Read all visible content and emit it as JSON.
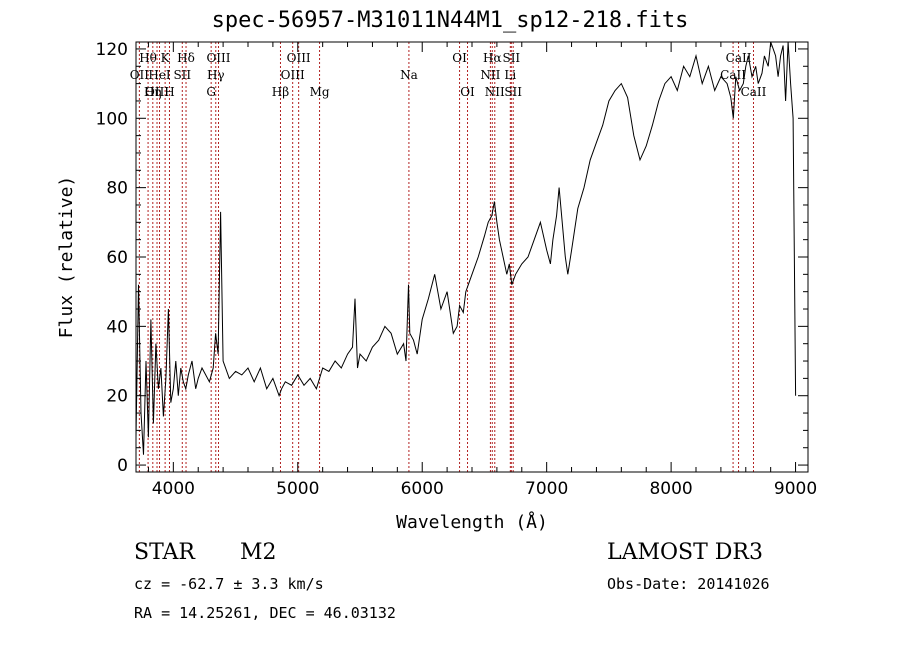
{
  "chart_data": {
    "type": "line",
    "title": "spec-56957-M31011N44M1_sp12-218.fits",
    "xlabel": "Wavelength (Å)",
    "ylabel": "Flux (relative)",
    "xlim": [
      3700,
      9100
    ],
    "ylim": [
      -2,
      122
    ],
    "xticks": [
      4000,
      5000,
      6000,
      7000,
      8000,
      9000
    ],
    "yticks": [
      0,
      20,
      40,
      60,
      80,
      100,
      120
    ],
    "series": [
      {
        "name": "flux",
        "x": [
          3700,
          3720,
          3740,
          3760,
          3780,
          3800,
          3820,
          3840,
          3860,
          3880,
          3900,
          3920,
          3940,
          3960,
          3980,
          4000,
          4020,
          4040,
          4060,
          4080,
          4100,
          4120,
          4150,
          4180,
          4200,
          4230,
          4260,
          4290,
          4320,
          4340,
          4360,
          4380,
          4400,
          4450,
          4500,
          4550,
          4600,
          4650,
          4700,
          4750,
          4800,
          4850,
          4870,
          4900,
          4950,
          5000,
          5050,
          5100,
          5150,
          5200,
          5250,
          5300,
          5350,
          5400,
          5440,
          5460,
          5480,
          5500,
          5550,
          5600,
          5650,
          5700,
          5750,
          5800,
          5850,
          5870,
          5890,
          5900,
          5930,
          5960,
          6000,
          6050,
          6100,
          6150,
          6200,
          6250,
          6280,
          6300,
          6330,
          6350,
          6400,
          6450,
          6500,
          6530,
          6560,
          6580,
          6600,
          6620,
          6650,
          6680,
          6700,
          6720,
          6750,
          6800,
          6850,
          6900,
          6950,
          7000,
          7030,
          7050,
          7080,
          7100,
          7120,
          7150,
          7170,
          7200,
          7250,
          7300,
          7350,
          7400,
          7450,
          7500,
          7550,
          7600,
          7650,
          7700,
          7750,
          7800,
          7850,
          7900,
          7950,
          8000,
          8050,
          8100,
          8150,
          8200,
          8250,
          8300,
          8350,
          8400,
          8450,
          8480,
          8500,
          8520,
          8550,
          8580,
          8600,
          8620,
          8650,
          8680,
          8700,
          8730,
          8750,
          8780,
          8800,
          8820,
          8840,
          8860,
          8880,
          8900,
          8920,
          8940,
          8960,
          8980,
          9000
        ],
        "y": [
          8,
          52,
          15,
          3,
          30,
          8,
          42,
          12,
          35,
          22,
          28,
          14,
          25,
          45,
          18,
          22,
          30,
          20,
          28,
          24,
          22,
          26,
          30,
          22,
          25,
          28,
          26,
          24,
          28,
          38,
          32,
          73,
          30,
          25,
          27,
          26,
          28,
          24,
          28,
          22,
          25,
          20,
          22,
          24,
          23,
          26,
          23,
          25,
          22,
          28,
          27,
          30,
          28,
          32,
          34,
          48,
          28,
          32,
          30,
          34,
          36,
          40,
          38,
          32,
          35,
          30,
          52,
          38,
          36,
          32,
          42,
          48,
          55,
          45,
          50,
          38,
          40,
          46,
          44,
          50,
          55,
          60,
          66,
          70,
          72,
          76,
          70,
          65,
          60,
          55,
          58,
          52,
          55,
          58,
          60,
          65,
          70,
          62,
          58,
          65,
          72,
          80,
          72,
          60,
          55,
          62,
          74,
          80,
          88,
          93,
          98,
          105,
          108,
          110,
          106,
          95,
          88,
          92,
          98,
          105,
          110,
          112,
          108,
          115,
          112,
          118,
          110,
          115,
          108,
          112,
          110,
          106,
          100,
          112,
          108,
          110,
          115,
          118,
          112,
          115,
          110,
          113,
          118,
          115,
          122,
          120,
          118,
          112,
          118,
          121,
          105,
          122,
          110,
          100,
          20
        ]
      }
    ],
    "lines": [
      {
        "label": "Hθ",
        "x": 3797,
        "row": 0
      },
      {
        "label": "OII",
        "x": 3727,
        "row": 1
      },
      {
        "label": "OIII",
        "x": 3869,
        "row": 2
      },
      {
        "label": "HeI",
        "x": 3889,
        "row": 1
      },
      {
        "label": "Hη",
        "x": 3835,
        "row": 2
      },
      {
        "label": "K",
        "x": 3934,
        "row": 0
      },
      {
        "label": "H",
        "x": 3969,
        "row": 2
      },
      {
        "label": "SII",
        "x": 4072,
        "row": 1
      },
      {
        "label": "Hδ",
        "x": 4102,
        "row": 0
      },
      {
        "label": "G",
        "x": 4304,
        "row": 2
      },
      {
        "label": "OIII",
        "x": 4363,
        "row": 0
      },
      {
        "label": "Hγ",
        "x": 4341,
        "row": 1
      },
      {
        "label": "Hβ",
        "x": 4861,
        "row": 2
      },
      {
        "label": "OIII",
        "x": 4959,
        "row": 1
      },
      {
        "label": "OIII",
        "x": 5007,
        "row": 0
      },
      {
        "label": "Mg",
        "x": 5175,
        "row": 2
      },
      {
        "label": "Na",
        "x": 5893,
        "row": 1
      },
      {
        "label": "OI",
        "x": 6300,
        "row": 0
      },
      {
        "label": "OI",
        "x": 6364,
        "row": 2
      },
      {
        "label": "NII",
        "x": 6548,
        "row": 1
      },
      {
        "label": "Hα",
        "x": 6563,
        "row": 0
      },
      {
        "label": "NII",
        "x": 6583,
        "row": 2
      },
      {
        "label": "SII",
        "x": 6716,
        "row": 0
      },
      {
        "label": "Li",
        "x": 6708,
        "row": 1
      },
      {
        "label": "SII",
        "x": 6731,
        "row": 2
      },
      {
        "label": "CaII",
        "x": 8498,
        "row": 1
      },
      {
        "label": "CaII",
        "x": 8542,
        "row": 0
      },
      {
        "label": "CaII",
        "x": 8662,
        "row": 2
      }
    ]
  },
  "info": {
    "class": "STAR",
    "subclass": "M2",
    "survey": "LAMOST DR3",
    "cz": "cz = -62.7 ± 3.3 km/s",
    "obs_date": "Obs-Date: 20141026",
    "radec": "RA =  14.25261, DEC =  46.03132"
  }
}
